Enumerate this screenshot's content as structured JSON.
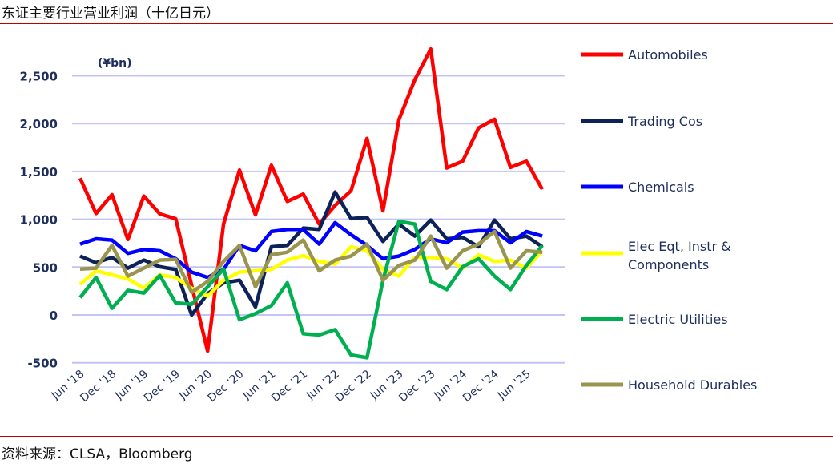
{
  "title": "东证主要行业营业利润（十亿日元）",
  "source": "资料来源：CLSA，Bloomberg",
  "chart_data": {
    "type": "line",
    "unit_label": "(¥bn)",
    "ylim": [
      -500,
      2500
    ],
    "yticks": [
      "2,500",
      "2,000",
      "1,500",
      "1,000",
      "500",
      "0",
      "-500"
    ],
    "ytick_values": [
      2500,
      2000,
      1500,
      1000,
      500,
      0,
      -500
    ],
    "grid": true,
    "legend_position": "right",
    "x_tick_labels": [
      "Jun '18",
      "Dec '18",
      "Jun '19",
      "Dec '19",
      "Jun '20",
      "Dec '20",
      "Jun '21",
      "Dec '21",
      "Jun '22",
      "Dec '22",
      "Jun '23",
      "Dec '23",
      "Jun '24",
      "Dec '24",
      "Jun '25"
    ],
    "x": [
      "Jun '18",
      "Sep '18",
      "Dec '18",
      "Mar '19",
      "Jun '19",
      "Sep '19",
      "Dec '19",
      "Mar '20",
      "Jun '20",
      "Sep '20",
      "Dec '20",
      "Mar '21",
      "Jun '21",
      "Sep '21",
      "Dec '21",
      "Mar '22",
      "Jun '22",
      "Sep '22",
      "Dec '22",
      "Mar '23",
      "Jun '23",
      "Sep '23",
      "Dec '23",
      "Mar '24",
      "Jun '24",
      "Sep '24",
      "Dec '24",
      "Mar '25",
      "Jun '25",
      "Sep '25"
    ],
    "series": [
      {
        "name": "Automobiles",
        "color": "#ff0000",
        "values": [
          1430,
          1060,
          1257,
          788,
          1243,
          1056,
          1005,
          307,
          -377,
          950,
          1514,
          1047,
          1564,
          1187,
          1263,
          950,
          1145,
          1299,
          1844,
          1089,
          2039,
          2458,
          2780,
          1536,
          1606,
          1955,
          2045,
          1542,
          1606,
          1313
        ]
      },
      {
        "name": "Trading Cos",
        "color": "#0d2358",
        "values": [
          615,
          545,
          601,
          489,
          573,
          503,
          475,
          0,
          223,
          335,
          363,
          84,
          712,
          726,
          908,
          894,
          1285,
          1006,
          1020,
          768,
          950,
          824,
          992,
          796,
          810,
          712,
          992,
          796,
          824,
          712
        ]
      },
      {
        "name": "Chemicals",
        "color": "#0000ff",
        "values": [
          740,
          796,
          782,
          643,
          684,
          670,
          587,
          447,
          391,
          475,
          726,
          670,
          872,
          894,
          894,
          740,
          964,
          838,
          726,
          587,
          615,
          684,
          796,
          754,
          866,
          880,
          880,
          754,
          872,
          824
        ]
      },
      {
        "name": "Elec Eqt, Instr & Components",
        "color": "#ffff00",
        "values": [
          321,
          461,
          419,
          377,
          279,
          419,
          391,
          279,
          196,
          363,
          447,
          461,
          475,
          573,
          620,
          559,
          531,
          712,
          670,
          475,
          405,
          601,
          601,
          587,
          489,
          628,
          559,
          573,
          489,
          670
        ]
      },
      {
        "name": "Electric Utilities",
        "color": "#00b050",
        "values": [
          182,
          391,
          70,
          257,
          229,
          413,
          126,
          112,
          293,
          480,
          -50,
          14,
          98,
          335,
          -196,
          -209,
          -154,
          -419,
          -447,
          360,
          978,
          950,
          349,
          265,
          503,
          587,
          405,
          265,
          517,
          726
        ]
      },
      {
        "name": "Household Durables",
        "color": "#99954f",
        "values": [
          480,
          489,
          726,
          405,
          489,
          573,
          581,
          237,
          349,
          559,
          726,
          293,
          628,
          656,
          782,
          461,
          573,
          615,
          740,
          363,
          517,
          573,
          824,
          489,
          670,
          740,
          872,
          489,
          670,
          656
        ]
      }
    ]
  }
}
